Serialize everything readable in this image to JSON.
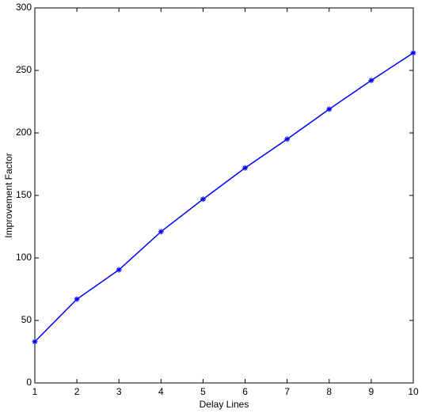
{
  "chart_data": {
    "type": "line",
    "x_label": "Delay Lines",
    "y_label": "Improvement Factor",
    "x": [
      1,
      2,
      3,
      4,
      5,
      6,
      7,
      8,
      9,
      10
    ],
    "series": [
      {
        "color": "#0000ff",
        "values": [
          33,
          67,
          90.5,
          121,
          147,
          172,
          195,
          219,
          242,
          264
        ]
      }
    ],
    "xlim": [
      1,
      10
    ],
    "xticks": [
      1,
      2,
      3,
      4,
      5,
      6,
      7,
      8,
      9,
      10
    ],
    "ylim": [
      0,
      300
    ],
    "yticks": [
      0,
      50,
      100,
      150,
      200,
      250,
      300
    ],
    "grid": false
  }
}
